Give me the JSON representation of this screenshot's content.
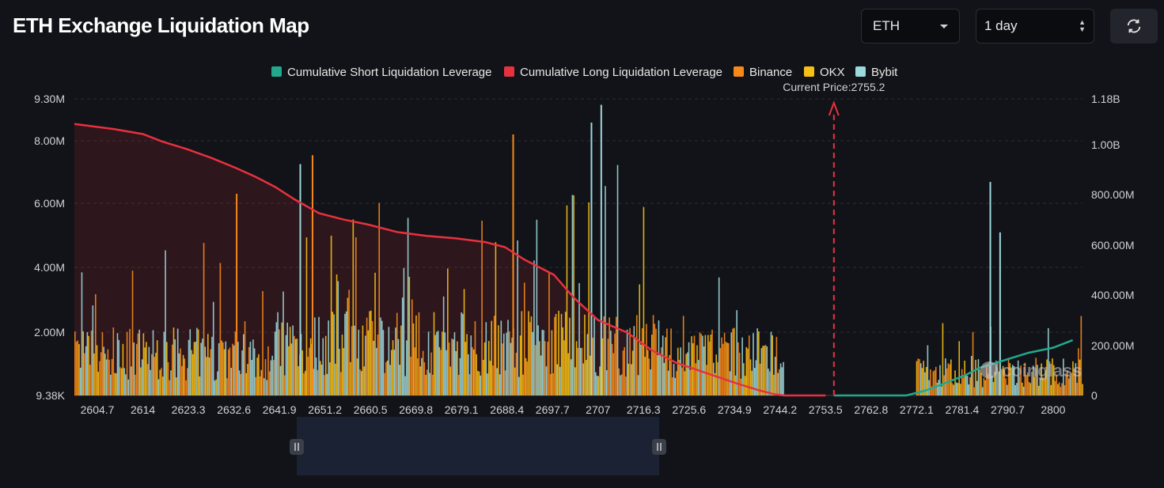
{
  "header": {
    "title": "ETH Exchange Liquidation Map",
    "symbol": "ETH",
    "period": "1 day"
  },
  "colors": {
    "short": "#22a98c",
    "long": "#e8313f",
    "binance": "#f7891b",
    "okx": "#f7c014",
    "bybit": "#9bd8dc"
  },
  "chart_data": {
    "type": "bar",
    "title": "",
    "legend": [
      "Cumulative Short Liquidation Leverage",
      "Cumulative Long Liquidation Leverage",
      "Binance",
      "OKX",
      "Bybit"
    ],
    "legend_position": "top-center",
    "y_left_ticks": [
      "9.38K",
      "2.00M",
      "4.00M",
      "6.00M",
      "8.00M",
      "9.30M"
    ],
    "y_left_range": [
      9380,
      9300000
    ],
    "y_right_ticks": [
      "0",
      "200.00M",
      "400.00M",
      "600.00M",
      "800.00M",
      "1.00B",
      "1.18B"
    ],
    "y_right_range": [
      0,
      1180000000
    ],
    "x_ticks": [
      "2604.7",
      "2614",
      "2623.3",
      "2632.6",
      "2641.9",
      "2651.2",
      "2660.5",
      "2669.8",
      "2679.1",
      "2688.4",
      "2697.7",
      "2707",
      "2716.3",
      "2725.6",
      "2734.9",
      "2744.2",
      "2753.5",
      "2762.8",
      "2772.1",
      "2781.4",
      "2790.7",
      "2800"
    ],
    "x_range": [
      2604.7,
      2800
    ],
    "current_price": 2755.2,
    "current_price_label": "Current Price:2755.2",
    "cumulative_long": {
      "x": [
        2600,
        2608,
        2614,
        2618,
        2623,
        2628,
        2633,
        2637,
        2641,
        2645,
        2650,
        2655,
        2660,
        2666,
        2672,
        2678,
        2684,
        2688,
        2692,
        2698,
        2702,
        2707,
        2713,
        2718,
        2723,
        2729,
        2735,
        2740,
        2743,
        2745,
        2753.5
      ],
      "y": [
        1080,
        1060,
        1040,
        1010,
        980,
        945,
        905,
        870,
        830,
        780,
        725,
        700,
        680,
        650,
        635,
        625,
        610,
        590,
        540,
        480,
        390,
        300,
        250,
        180,
        130,
        90,
        50,
        20,
        5,
        0,
        0
      ]
    },
    "cumulative_short": {
      "x": [
        2755.2,
        2770,
        2774,
        2782,
        2785,
        2790,
        2795,
        2800,
        2804
      ],
      "y": [
        0,
        0,
        20,
        80,
        110,
        140,
        170,
        190,
        220
      ]
    },
    "bar_series_note": "dense per-price liquidation bars for Binance, OKX, Bybit; values in left-axis units"
  },
  "dataZoom": {
    "start": 0.22,
    "end": 0.58
  }
}
